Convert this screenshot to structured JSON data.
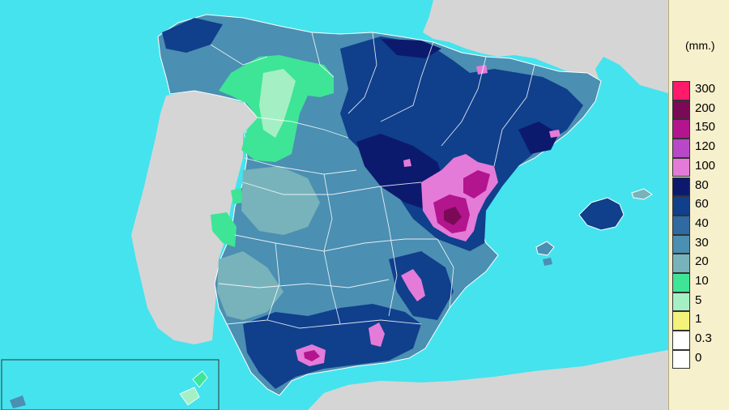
{
  "legend": {
    "unit": "(mm.)",
    "classes": [
      {
        "label": "300",
        "color": "#ff1b6b"
      },
      {
        "label": "200",
        "color": "#7a0a55"
      },
      {
        "label": "150",
        "color": "#b3158e"
      },
      {
        "label": "120",
        "color": "#b848c8"
      },
      {
        "label": "100",
        "color": "#e47bd8"
      },
      {
        "label": "80",
        "color": "#0c1a6e"
      },
      {
        "label": "60",
        "color": "#103f8c"
      },
      {
        "label": "40",
        "color": "#2f6aa2"
      },
      {
        "label": "30",
        "color": "#4b8fb2"
      },
      {
        "label": "20",
        "color": "#78b3bb"
      },
      {
        "label": "10",
        "color": "#3ee596"
      },
      {
        "label": "5",
        "color": "#a4f0c4"
      },
      {
        "label": "1",
        "color": "#f3f27a"
      },
      {
        "label": "0.3",
        "color": "#ffffff"
      },
      {
        "label": "0",
        "color": "#ffffff"
      }
    ]
  },
  "map": {
    "sea_color": "#45e3ee",
    "land_other_color": "#d5d5d5",
    "boundary_color": "#ffffff"
  }
}
